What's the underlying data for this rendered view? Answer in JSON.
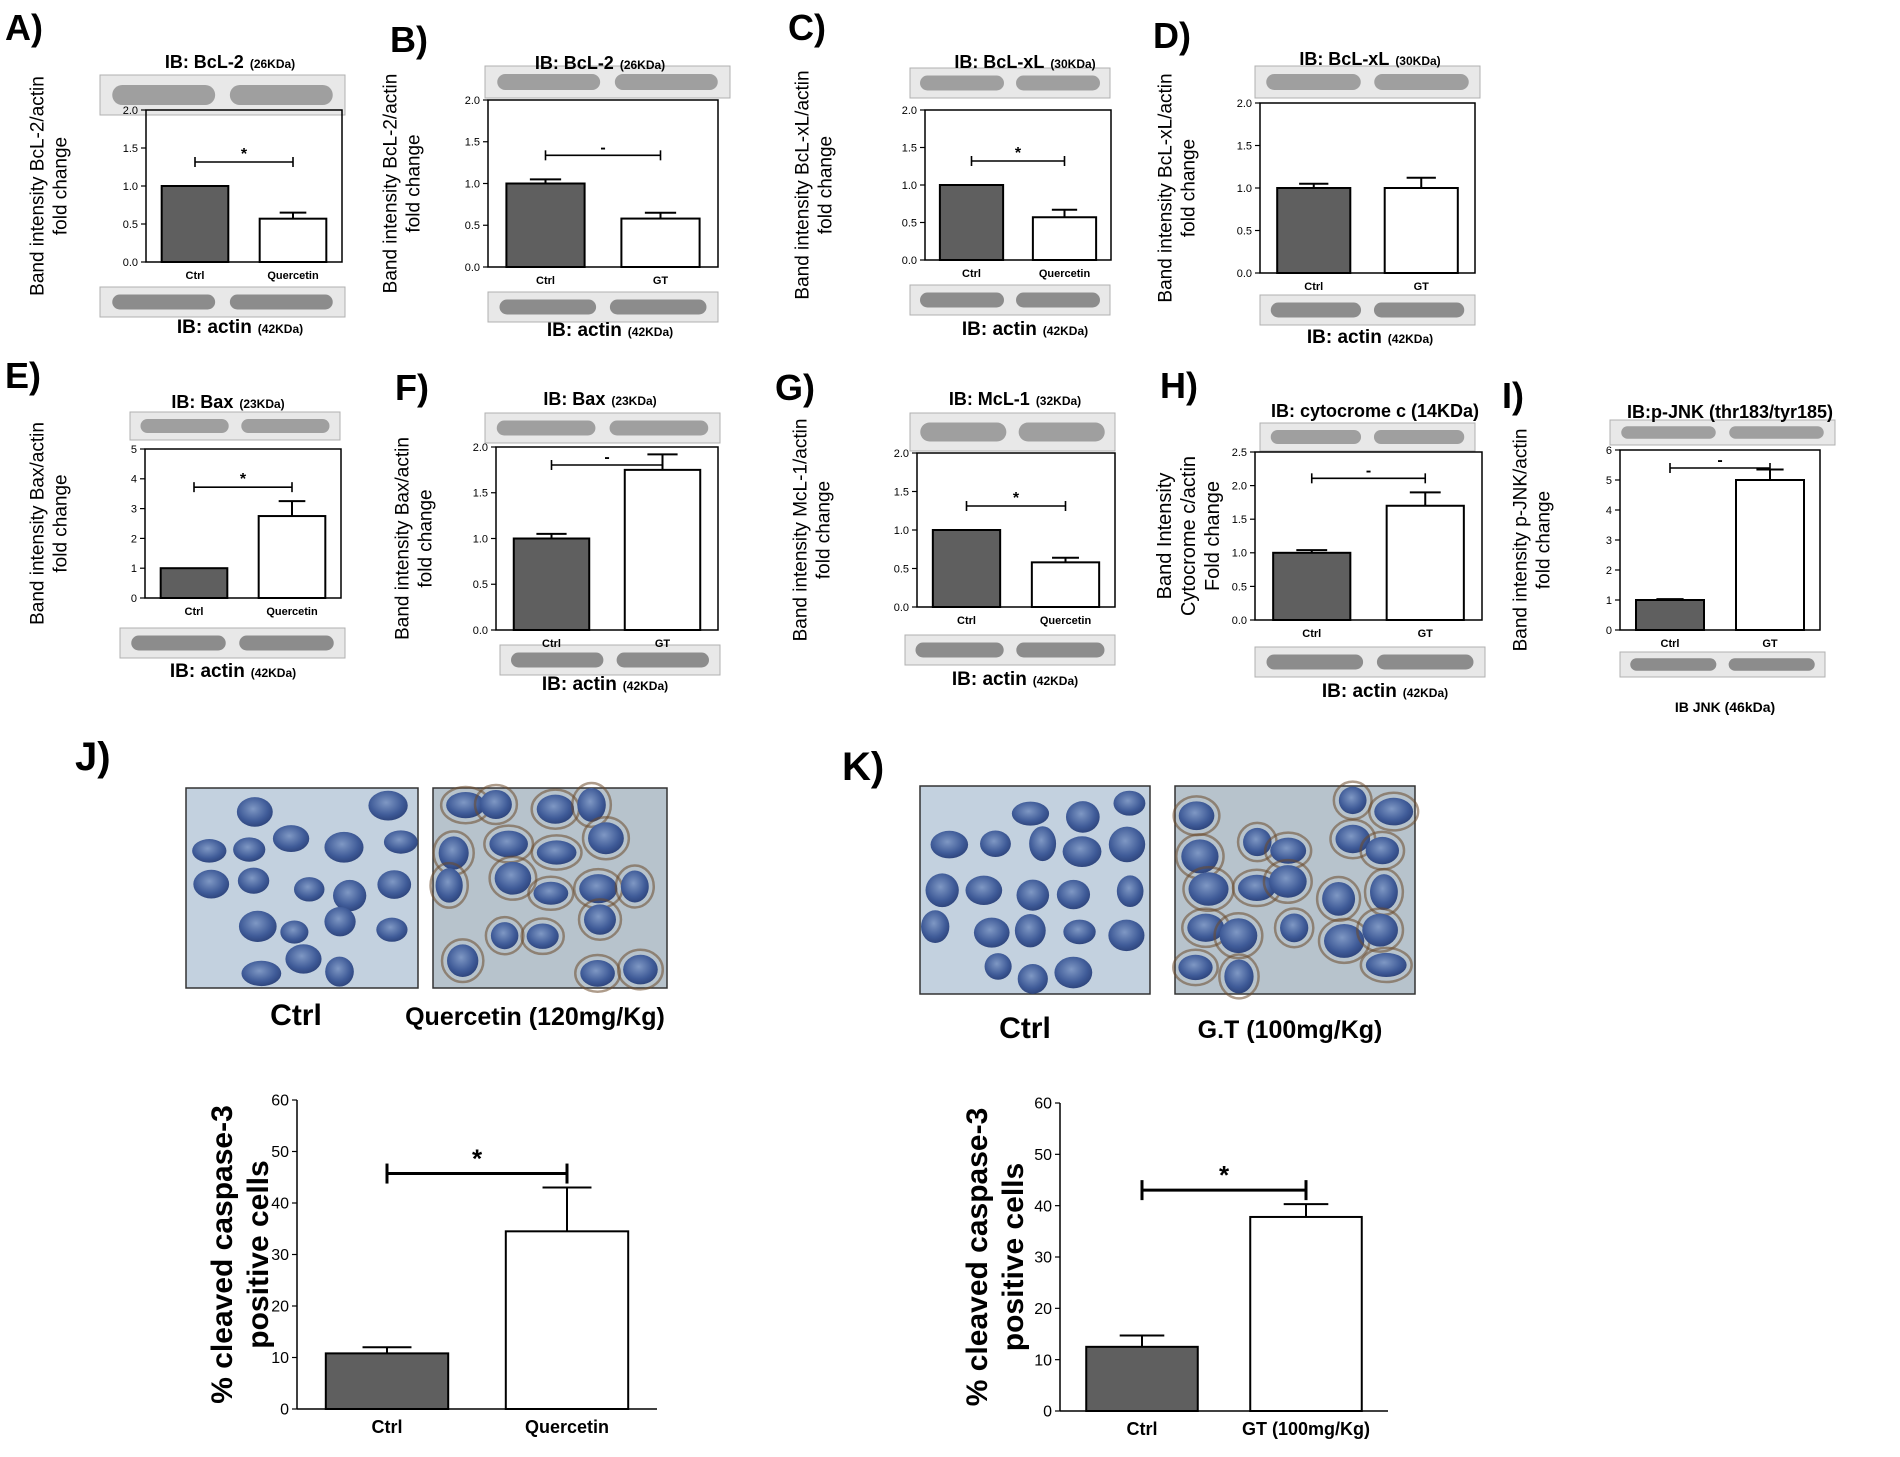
{
  "chart_data": [
    {
      "letter": "A)",
      "type": "bar",
      "blot_top": "IB: BcL-2",
      "blot_top_kda": "(26KDa)",
      "blot_bottom": "IB: actin",
      "blot_bottom_kda": "(42KDa)",
      "ylabel": [
        "Band intensity BcL-2/actin",
        "fold change"
      ],
      "categories": [
        "Ctrl",
        "Quercetin"
      ],
      "values": [
        1.0,
        0.57
      ],
      "errors": [
        0.0,
        0.08
      ],
      "ylim": [
        0,
        2
      ],
      "ticks": [
        "0.0",
        "0.5",
        "1.0",
        "1.5",
        "2.0"
      ],
      "sig": "*"
    },
    {
      "letter": "B)",
      "type": "bar",
      "blot_top": "IB: BcL-2",
      "blot_top_kda": "(26KDa)",
      "blot_bottom": "IB: actin",
      "blot_bottom_kda": "(42KDa)",
      "ylabel": [
        "Band intensity BcL-2/actin",
        "fold change"
      ],
      "categories": [
        "Ctrl",
        "GT"
      ],
      "values": [
        1.0,
        0.58
      ],
      "errors": [
        0.05,
        0.07
      ],
      "ylim": [
        0,
        2
      ],
      "ticks": [
        "0.0",
        "0.5",
        "1.0",
        "1.5",
        "2.0"
      ],
      "sig": "-"
    },
    {
      "letter": "C)",
      "type": "bar",
      "blot_top": "IB: BcL-xL",
      "blot_top_kda": "(30KDa)",
      "blot_bottom": "IB: actin",
      "blot_bottom_kda": "(42KDa)",
      "ylabel": [
        "Band intensity BcL-xL/actin",
        "fold change"
      ],
      "categories": [
        "Ctrl",
        "Quercetin"
      ],
      "values": [
        1.0,
        0.57
      ],
      "errors": [
        0.0,
        0.1
      ],
      "ylim": [
        0,
        2
      ],
      "ticks": [
        "0.0",
        "0.5",
        "1.0",
        "1.5",
        "2.0"
      ],
      "sig": "*"
    },
    {
      "letter": "D)",
      "type": "bar",
      "blot_top": "IB: BcL-xL",
      "blot_top_kda": "(30KDa)",
      "blot_bottom": "IB: actin",
      "blot_bottom_kda": "(42KDa)",
      "ylabel": [
        "Band intensity BcL-xL/actin",
        "fold change"
      ],
      "categories": [
        "Ctrl",
        "GT"
      ],
      "values": [
        1.0,
        1.0
      ],
      "errors": [
        0.05,
        0.12
      ],
      "ylim": [
        0,
        2
      ],
      "ticks": [
        "0.0",
        "0.5",
        "1.0",
        "1.5",
        "2.0"
      ],
      "sig": ""
    },
    {
      "letter": "E)",
      "type": "bar",
      "blot_top": "IB: Bax",
      "blot_top_kda": "(23KDa)",
      "blot_bottom": "IB: actin",
      "blot_bottom_kda": "(42KDa)",
      "ylabel": [
        "Band intensity Bax/actin",
        "fold change"
      ],
      "categories": [
        "Ctrl",
        "Quercetin"
      ],
      "values": [
        1.0,
        2.75
      ],
      "errors": [
        0.0,
        0.5
      ],
      "ylim": [
        0,
        5
      ],
      "ticks": [
        "0",
        "1",
        "2",
        "3",
        "4",
        "5"
      ],
      "sig": "*"
    },
    {
      "letter": "F)",
      "type": "bar",
      "blot_top": "IB: Bax",
      "blot_top_kda": "(23KDa)",
      "blot_bottom": "IB: actin",
      "blot_bottom_kda": "(42KDa)",
      "ylabel": [
        "Band intensity Bax/actin",
        "fold change"
      ],
      "categories": [
        "Ctrl",
        "GT"
      ],
      "values": [
        1.0,
        1.75
      ],
      "errors": [
        0.05,
        0.17
      ],
      "ylim": [
        0,
        2
      ],
      "ticks": [
        "0.0",
        "0.5",
        "1.0",
        "1.5",
        "2.0"
      ],
      "sig": "-"
    },
    {
      "letter": "G)",
      "type": "bar",
      "blot_top": "IB: McL-1",
      "blot_top_kda": "(32KDa)",
      "blot_bottom": "IB: actin",
      "blot_bottom_kda": "(42KDa)",
      "ylabel": [
        "Band intensity McL-1/actin",
        "fold change"
      ],
      "categories": [
        "Ctrl",
        "Quercetin"
      ],
      "values": [
        1.0,
        0.58
      ],
      "errors": [
        0.0,
        0.06
      ],
      "ylim": [
        0,
        2
      ],
      "ticks": [
        "0.0",
        "0.5",
        "1.0",
        "1.5",
        "2.0"
      ],
      "sig": "*"
    },
    {
      "letter": "H)",
      "type": "bar",
      "blot_top": "IB: cytocrome c (14KDa)",
      "blot_top_kda": "",
      "blot_bottom": "IB: actin",
      "blot_bottom_kda": "(42KDa)",
      "ylabel": [
        "Band Intensity",
        "Cytocrome c/actin",
        "Fold change"
      ],
      "categories": [
        "Ctrl",
        "GT"
      ],
      "values": [
        1.0,
        1.7
      ],
      "errors": [
        0.04,
        0.2
      ],
      "ylim": [
        0,
        2.5
      ],
      "ticks": [
        "0.0",
        "0.5",
        "1.0",
        "1.5",
        "2.0",
        "2.5"
      ],
      "sig": "-"
    },
    {
      "letter": "I)",
      "type": "bar",
      "blot_top": "IB:p-JNK (thr183/tyr185)",
      "blot_top_kda": "",
      "blot_bottom": "IB JNK (46kDa)",
      "blot_bottom_kda": "",
      "ylabel": [
        "Band intensity p-JNK/actin",
        "fold change"
      ],
      "categories": [
        "Ctrl",
        "GT"
      ],
      "values": [
        1.0,
        5.0
      ],
      "errors": [
        0.03,
        0.35
      ],
      "ylim": [
        0,
        6
      ],
      "ticks": [
        "0",
        "1",
        "2",
        "3",
        "4",
        "5",
        "6"
      ],
      "sig": "-"
    },
    {
      "letter": "J)",
      "type": "bar",
      "images": [
        "Ctrl",
        "Quercetin (120mg/Kg)"
      ],
      "ylabel": [
        "% cleaved caspase-3",
        "positive cells"
      ],
      "categories": [
        "Ctrl",
        "Quercetin"
      ],
      "values": [
        10.8,
        34.5
      ],
      "errors": [
        1.2,
        8.5
      ],
      "ylim": [
        0,
        60
      ],
      "ticks": [
        "0",
        "10",
        "20",
        "30",
        "40",
        "50",
        "60"
      ],
      "sig": "*"
    },
    {
      "letter": "K)",
      "type": "bar",
      "images": [
        "Ctrl",
        "G.T (100mg/Kg)"
      ],
      "ylabel": [
        "% cleaved caspase-3",
        "positive cells"
      ],
      "categories": [
        "Ctrl",
        "GT (100mg/Kg)"
      ],
      "values": [
        12.5,
        37.8
      ],
      "errors": [
        2.2,
        2.5
      ],
      "ylim": [
        0,
        60
      ],
      "ticks": [
        "0",
        "10",
        "20",
        "30",
        "40",
        "50",
        "60"
      ],
      "sig": "*"
    }
  ],
  "colors": {
    "ctrl_bar": "#5f5f5f",
    "treated_bar": "#ffffff",
    "outline": "#000000"
  }
}
